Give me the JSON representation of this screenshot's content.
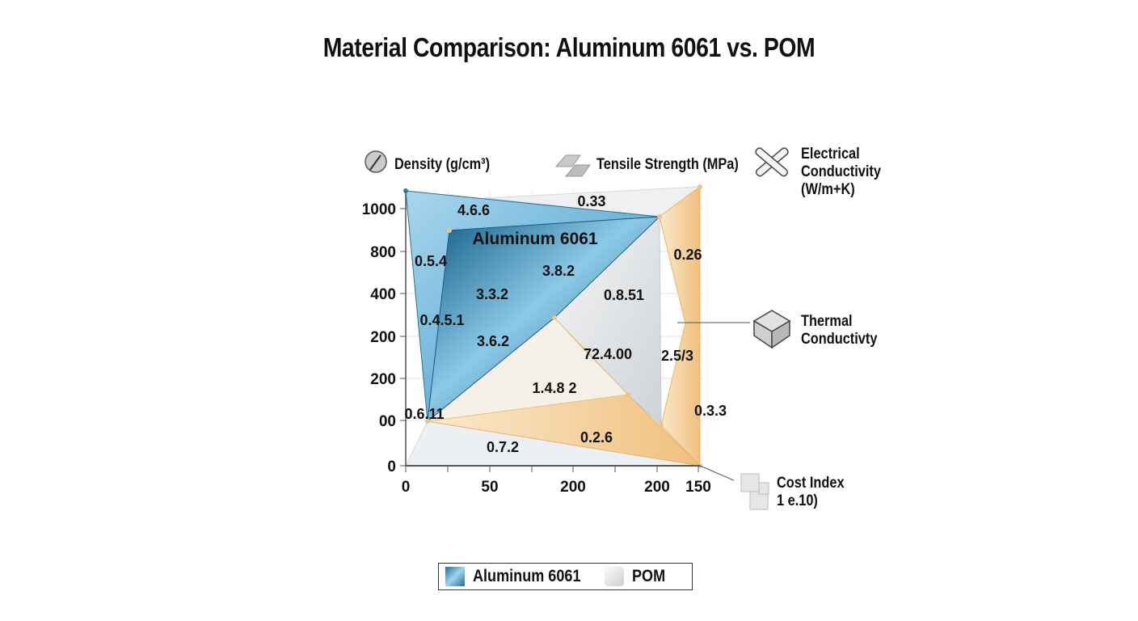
{
  "chart_data": {
    "type": "area",
    "title": "Material Comparison: Aluminum 6061 vs. POM",
    "axes": [
      {
        "name": "Density (g/cm³)",
        "icon": "density-gauge-icon"
      },
      {
        "name": "Tensile Strength (MPa)",
        "icon": "metal-bar-icon"
      },
      {
        "name": "Electrical Conductivity (W/m+K)",
        "icon": "fuse-icon"
      },
      {
        "name": "Thermal Conductivty",
        "icon": "cube-icon"
      },
      {
        "name": "Cost Index 1 e.10)",
        "icon": "blocks-icon"
      }
    ],
    "y_tick_labels": [
      "1000",
      "800",
      "400",
      "200",
      "200",
      "00",
      "0"
    ],
    "x_tick_labels": [
      "0",
      "50",
      "200",
      "200",
      "150"
    ],
    "series": [
      {
        "name": "Aluminum 6061",
        "color": "#1e6f9a",
        "label": "Aluminum 6061"
      },
      {
        "name": "POM",
        "color": "#e9b870"
      }
    ],
    "data_labels": [
      "4.6.6",
      "0.33",
      "0.5.4",
      "3.8.2",
      "3.3.2",
      "0.8.51",
      "0.26",
      "0.4.5.1",
      "3.6.2",
      "72.4.00",
      "2.5/3",
      "1.4.8 2",
      "0.6.11",
      "0.3.3",
      "0.2.6",
      "0.7.2"
    ],
    "grid": true,
    "legend": {
      "placement": "bottom",
      "entries": [
        "Aluminum 6061",
        "POM"
      ]
    }
  }
}
